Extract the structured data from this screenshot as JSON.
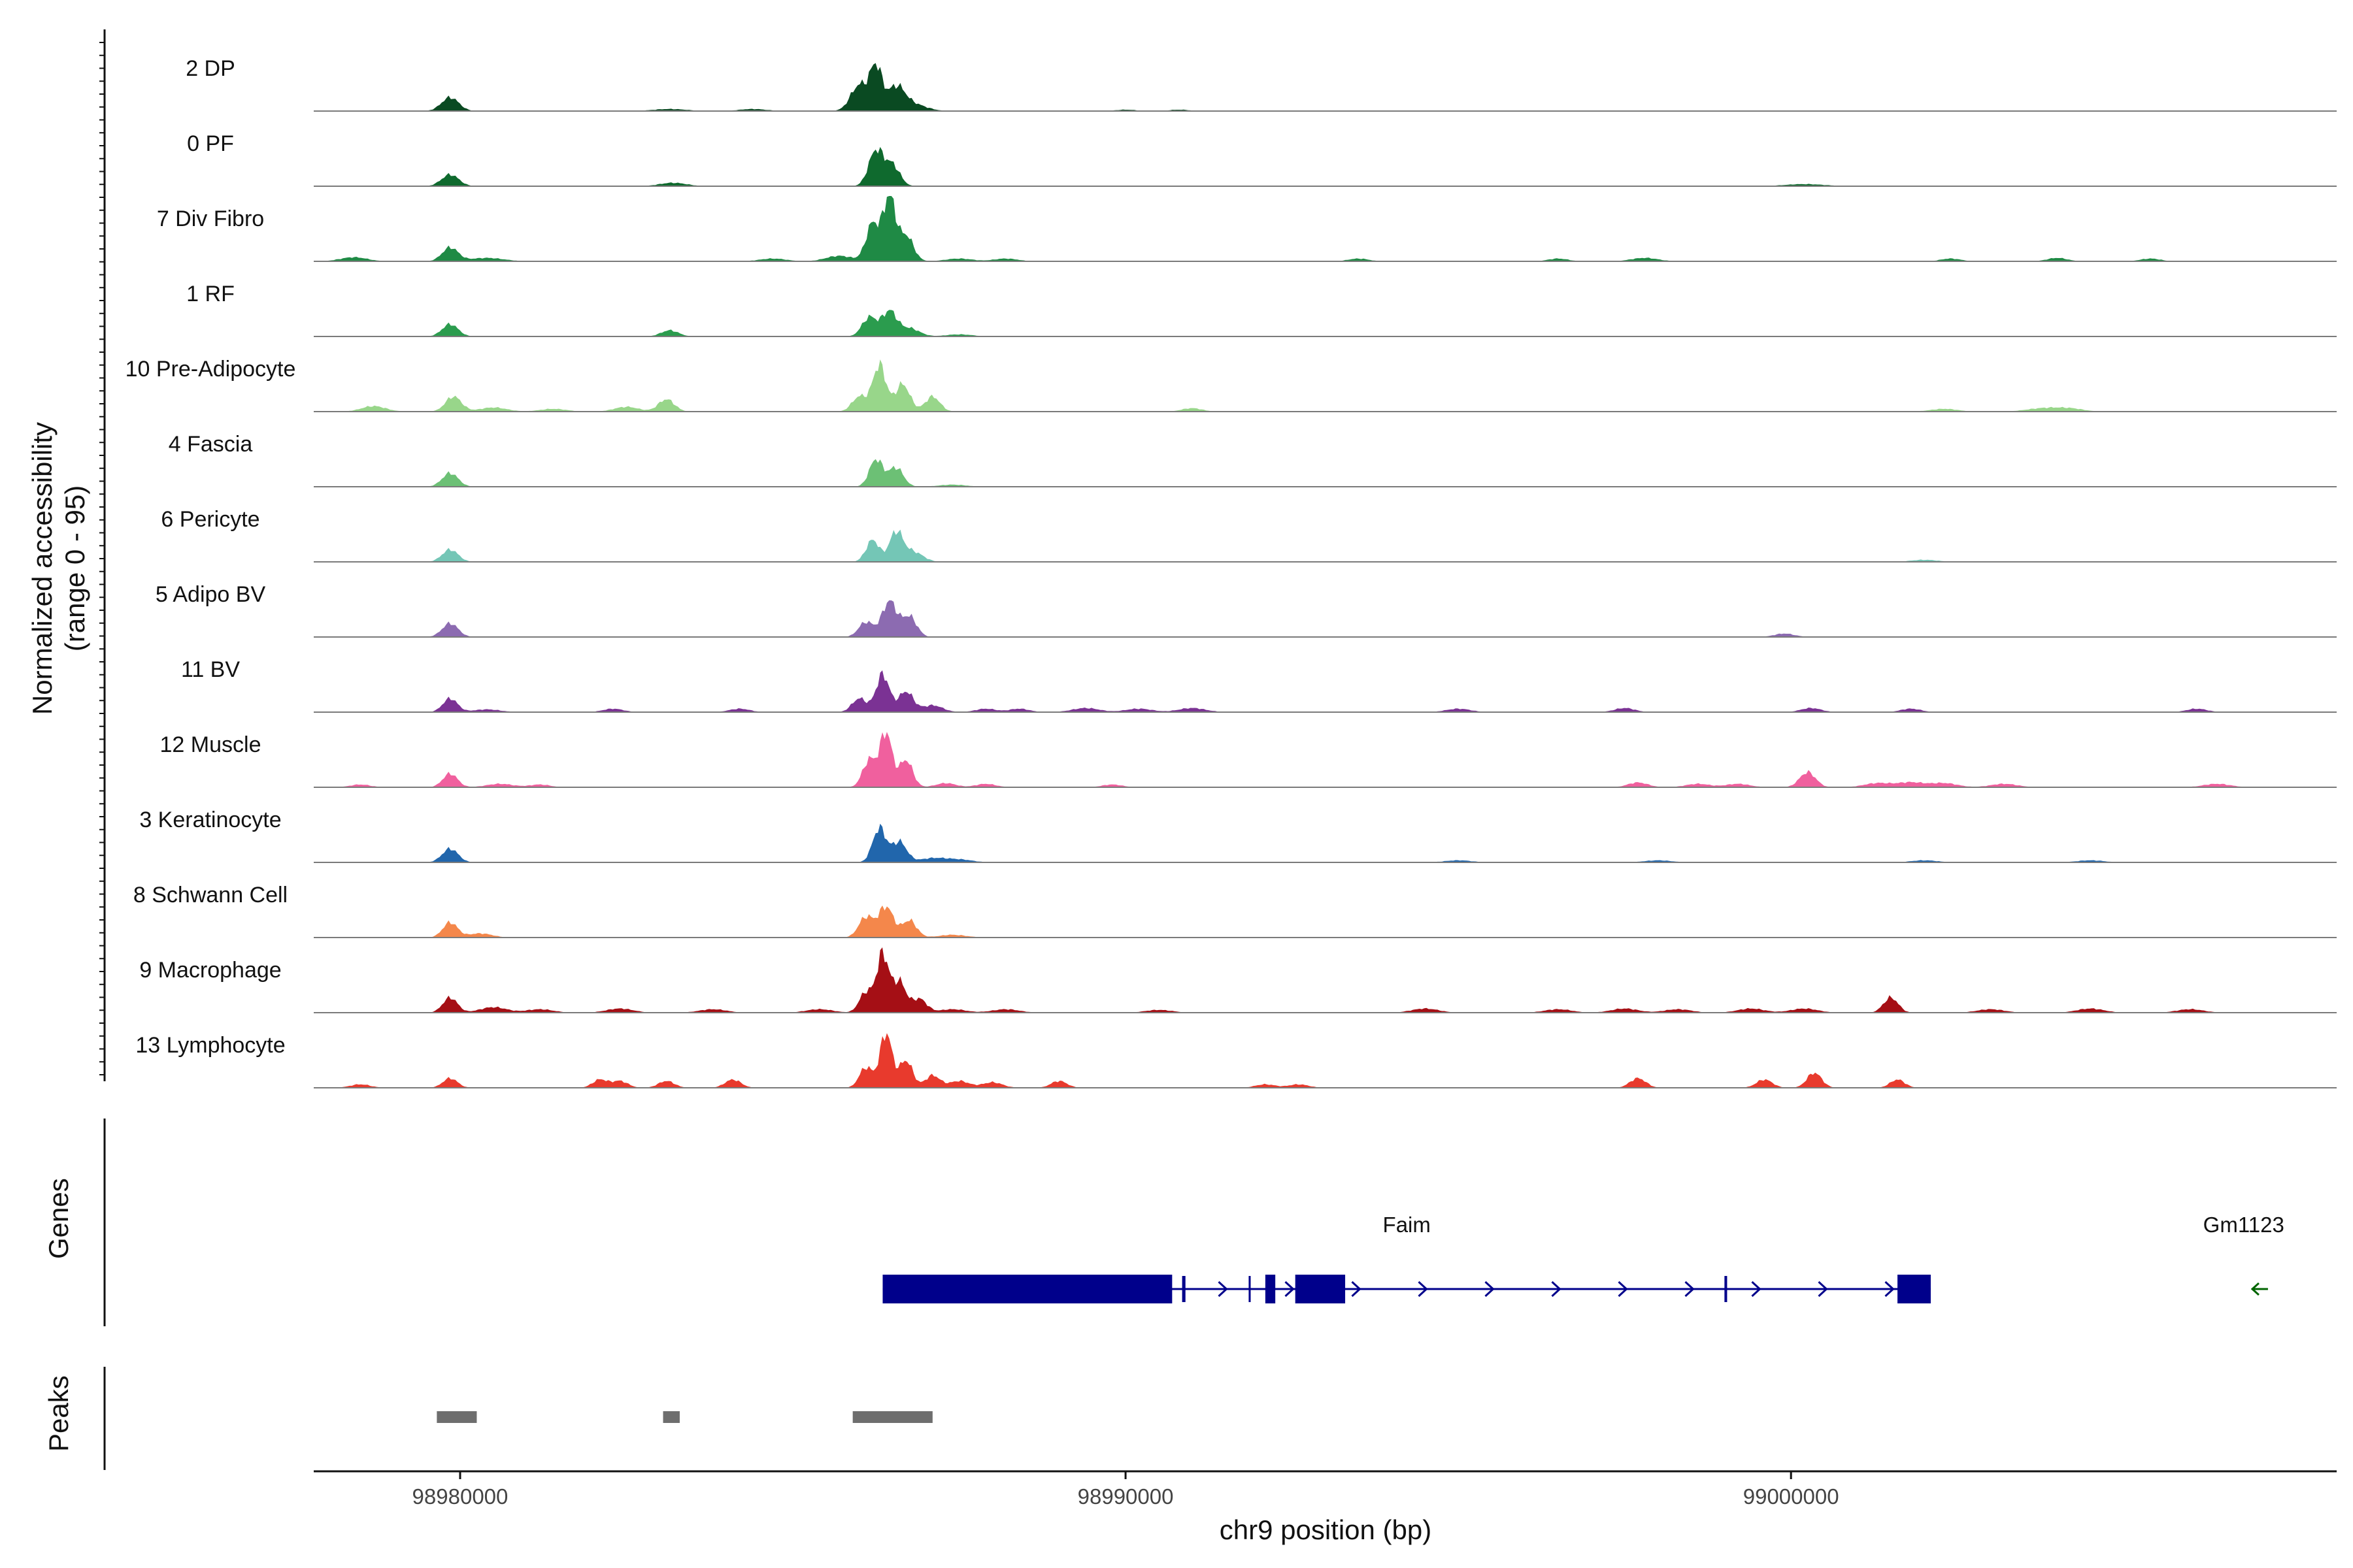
{
  "chart_data": {
    "type": "area",
    "title": "",
    "chromosome": "chr9",
    "xlabel": "chr9 position (bp)",
    "ylabel": "Normalized accessibility",
    "ylabel_range": "(range 0 - 95)",
    "ylim": [
      0,
      95
    ],
    "xlim": [
      98977800,
      99008200
    ],
    "x_ticks": [
      98980000,
      98990000,
      99000000
    ],
    "x_tick_labels": [
      "98980000",
      "98990000",
      "99000000"
    ],
    "tracks": [
      {
        "name": "2 DP",
        "color": "#0a4a22",
        "peaks": [
          [
            98979850,
            20,
            130
          ],
          [
            98983150,
            3,
            250
          ],
          [
            98984400,
            3,
            200
          ],
          [
            98986000,
            38,
            130
          ],
          [
            98986250,
            62,
            90
          ],
          [
            98986550,
            33,
            130
          ],
          [
            98986800,
            10,
            200
          ],
          [
            98990000,
            2,
            150
          ],
          [
            98990800,
            2,
            150
          ]
        ]
      },
      {
        "name": "0 PF",
        "color": "#0f6a2e",
        "peaks": [
          [
            98979850,
            17,
            130
          ],
          [
            98983200,
            5,
            200
          ],
          [
            98986250,
            52,
            110
          ],
          [
            98986500,
            30,
            110
          ],
          [
            99000200,
            3,
            300
          ]
        ]
      },
      {
        "name": "7 Div Fibro",
        "color": "#1f8a45",
        "peaks": [
          [
            98978400,
            6,
            200
          ],
          [
            98979850,
            20,
            120
          ],
          [
            98980400,
            5,
            250
          ],
          [
            98984700,
            4,
            200
          ],
          [
            98985700,
            8,
            200
          ],
          [
            98986200,
            55,
            100
          ],
          [
            98986450,
            95,
            90
          ],
          [
            98986700,
            38,
            110
          ],
          [
            98987500,
            4,
            200
          ],
          [
            98988200,
            4,
            180
          ],
          [
            98993500,
            4,
            150
          ],
          [
            98996500,
            4,
            150
          ],
          [
            98997800,
            5,
            200
          ],
          [
            99002400,
            4,
            150
          ],
          [
            99004000,
            5,
            150
          ],
          [
            99005400,
            4,
            150
          ]
        ]
      },
      {
        "name": "1 RF",
        "color": "#2b9c4e",
        "peaks": [
          [
            98979850,
            18,
            120
          ],
          [
            98983150,
            9,
            130
          ],
          [
            98986150,
            28,
            110
          ],
          [
            98986450,
            36,
            110
          ],
          [
            98986750,
            12,
            150
          ],
          [
            98987500,
            3,
            200
          ]
        ]
      },
      {
        "name": "10 Pre-Adipocyte",
        "color": "#98d68a",
        "peaks": [
          [
            98978700,
            8,
            180
          ],
          [
            98979900,
            22,
            120
          ],
          [
            98980500,
            6,
            200
          ],
          [
            98981400,
            4,
            200
          ],
          [
            98982500,
            7,
            180
          ],
          [
            98983100,
            18,
            120
          ],
          [
            98986000,
            22,
            110
          ],
          [
            98986300,
            68,
            100
          ],
          [
            98986650,
            40,
            110
          ],
          [
            98987100,
            22,
            110
          ],
          [
            98991000,
            5,
            150
          ],
          [
            99002300,
            4,
            200
          ],
          [
            99003800,
            5,
            250
          ],
          [
            99004200,
            4,
            200
          ]
        ]
      },
      {
        "name": "4 Fascia",
        "color": "#6cc075",
        "peaks": [
          [
            98979850,
            20,
            120
          ],
          [
            98986250,
            40,
            100
          ],
          [
            98986550,
            28,
            110
          ],
          [
            98987400,
            3,
            200
          ]
        ]
      },
      {
        "name": "6 Pericyte",
        "color": "#74c6b6",
        "peaks": [
          [
            98979850,
            18,
            120
          ],
          [
            98986200,
            32,
            100
          ],
          [
            98986550,
            42,
            100
          ],
          [
            98986800,
            15,
            150
          ],
          [
            99002000,
            3,
            200
          ]
        ]
      },
      {
        "name": "5 Adipo BV",
        "color": "#8c6bb1",
        "peaks": [
          [
            98979850,
            20,
            120
          ],
          [
            98986100,
            22,
            110
          ],
          [
            98986450,
            52,
            110
          ],
          [
            98986750,
            30,
            110
          ],
          [
            98999900,
            5,
            150
          ]
        ]
      },
      {
        "name": "11 BV",
        "color": "#7b3294",
        "peaks": [
          [
            98979850,
            20,
            110
          ],
          [
            98980400,
            4,
            200
          ],
          [
            98982300,
            5,
            150
          ],
          [
            98984200,
            5,
            150
          ],
          [
            98986000,
            20,
            110
          ],
          [
            98986350,
            55,
            100
          ],
          [
            98986700,
            30,
            110
          ],
          [
            98987100,
            10,
            150
          ],
          [
            98987900,
            5,
            150
          ],
          [
            98988400,
            5,
            150
          ],
          [
            98989400,
            6,
            200
          ],
          [
            98990200,
            5,
            200
          ],
          [
            98991000,
            6,
            200
          ],
          [
            98995000,
            5,
            180
          ],
          [
            98997500,
            6,
            150
          ],
          [
            99000300,
            6,
            150
          ],
          [
            99001800,
            5,
            150
          ],
          [
            99006100,
            5,
            150
          ]
        ]
      },
      {
        "name": "12 Muscle",
        "color": "#f0609e",
        "peaks": [
          [
            98978500,
            4,
            150
          ],
          [
            98979850,
            20,
            110
          ],
          [
            98980600,
            5,
            200
          ],
          [
            98981200,
            4,
            150
          ],
          [
            98986150,
            40,
            100
          ],
          [
            98986400,
            80,
            90
          ],
          [
            98986700,
            40,
            100
          ],
          [
            98987300,
            6,
            150
          ],
          [
            98987900,
            5,
            150
          ],
          [
            98989800,
            4,
            150
          ],
          [
            98997700,
            7,
            150
          ],
          [
            98998600,
            5,
            180
          ],
          [
            98999200,
            5,
            180
          ],
          [
            99000250,
            22,
            120
          ],
          [
            99001300,
            6,
            200
          ],
          [
            99001800,
            7,
            200
          ],
          [
            99002300,
            6,
            200
          ],
          [
            99003200,
            5,
            200
          ],
          [
            99006400,
            5,
            200
          ]
        ]
      },
      {
        "name": "3 Keratinocyte",
        "color": "#2166ac",
        "peaks": [
          [
            98979850,
            20,
            120
          ],
          [
            98986300,
            50,
            100
          ],
          [
            98986600,
            30,
            110
          ],
          [
            98987100,
            6,
            200
          ],
          [
            98987500,
            4,
            200
          ],
          [
            98995000,
            3,
            200
          ],
          [
            98998000,
            3,
            200
          ],
          [
            99002000,
            3,
            200
          ],
          [
            99004500,
            3,
            200
          ]
        ]
      },
      {
        "name": "8 Schwann Cell",
        "color": "#f4874b",
        "peaks": [
          [
            98979850,
            22,
            110
          ],
          [
            98980300,
            6,
            180
          ],
          [
            98986100,
            30,
            110
          ],
          [
            98986400,
            45,
            110
          ],
          [
            98986750,
            25,
            110
          ],
          [
            98987400,
            4,
            200
          ]
        ]
      },
      {
        "name": "9 Macrophage",
        "color": "#a50f15",
        "peaks": [
          [
            98979850,
            22,
            110
          ],
          [
            98980500,
            8,
            200
          ],
          [
            98981200,
            5,
            200
          ],
          [
            98982400,
            6,
            200
          ],
          [
            98983800,
            5,
            200
          ],
          [
            98985400,
            5,
            200
          ],
          [
            98986100,
            30,
            100
          ],
          [
            98986350,
            85,
            90
          ],
          [
            98986600,
            45,
            100
          ],
          [
            98986900,
            20,
            110
          ],
          [
            98987400,
            5,
            200
          ],
          [
            98988200,
            5,
            200
          ],
          [
            98990500,
            4,
            200
          ],
          [
            98994500,
            6,
            200
          ],
          [
            98996500,
            5,
            200
          ],
          [
            98997500,
            6,
            200
          ],
          [
            98998300,
            5,
            200
          ],
          [
            98999400,
            6,
            200
          ],
          [
            99000200,
            6,
            200
          ],
          [
            99001500,
            22,
            110
          ],
          [
            99003000,
            5,
            200
          ],
          [
            99004500,
            6,
            200
          ],
          [
            99006000,
            5,
            200
          ]
        ]
      },
      {
        "name": "13 Lymphocyte",
        "color": "#e83a2d",
        "peaks": [
          [
            98978500,
            5,
            150
          ],
          [
            98979850,
            14,
            110
          ],
          [
            98982100,
            12,
            110
          ],
          [
            98982400,
            10,
            120
          ],
          [
            98983100,
            10,
            120
          ],
          [
            98984100,
            12,
            120
          ],
          [
            98986100,
            30,
            100
          ],
          [
            98986400,
            80,
            90
          ],
          [
            98986700,
            40,
            100
          ],
          [
            98987100,
            18,
            110
          ],
          [
            98987500,
            10,
            150
          ],
          [
            98988000,
            8,
            150
          ],
          [
            98989000,
            10,
            120
          ],
          [
            98992100,
            5,
            150
          ],
          [
            98992600,
            5,
            150
          ],
          [
            98997700,
            14,
            120
          ],
          [
            98999600,
            12,
            120
          ],
          [
            99000350,
            22,
            110
          ],
          [
            99001600,
            12,
            110
          ]
        ]
      }
    ],
    "genes_track": {
      "title": "Genes",
      "genes": [
        {
          "name": "Faim",
          "start": 98986350,
          "end": 99002100,
          "strand": "+",
          "color": "#00008b",
          "exons": [
            [
              98986350,
              98990700
            ],
            [
              98990850,
              98990900
            ],
            [
              98991850,
              98991880
            ],
            [
              98992100,
              98992250
            ],
            [
              98992550,
              98993300
            ],
            [
              98999000,
              98999040
            ],
            [
              99001600,
              99002100
            ]
          ]
        },
        {
          "name": "Gm1123",
          "start": 99006950,
          "end": 99007150,
          "strand": "-",
          "color": "#006400",
          "exons": []
        }
      ]
    },
    "peaks_track": {
      "title": "Peaks",
      "color": "#6e6e6e",
      "regions": [
        [
          98979650,
          98980250
        ],
        [
          98983050,
          98983300
        ],
        [
          98985900,
          98987100
        ]
      ]
    }
  }
}
